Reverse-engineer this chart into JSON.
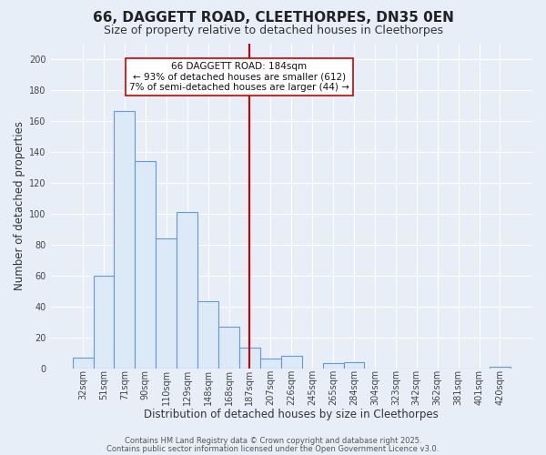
{
  "title": "66, DAGGETT ROAD, CLEETHORPES, DN35 0EN",
  "subtitle": "Size of property relative to detached houses in Cleethorpes",
  "xlabel": "Distribution of detached houses by size in Cleethorpes",
  "ylabel": "Number of detached properties",
  "bar_labels": [
    "32sqm",
    "51sqm",
    "71sqm",
    "90sqm",
    "110sqm",
    "129sqm",
    "148sqm",
    "168sqm",
    "187sqm",
    "207sqm",
    "226sqm",
    "245sqm",
    "265sqm",
    "284sqm",
    "304sqm",
    "323sqm",
    "342sqm",
    "362sqm",
    "381sqm",
    "401sqm",
    "420sqm"
  ],
  "bar_values": [
    7,
    60,
    166,
    134,
    84,
    101,
    43,
    27,
    13,
    6,
    8,
    0,
    3,
    4,
    0,
    0,
    0,
    0,
    0,
    0,
    1
  ],
  "bar_color": "#dce9f7",
  "bar_edge_color": "#6699cc",
  "vline_x_index": 8,
  "vline_color": "#cc0000",
  "annotation_title": "66 DAGGETT ROAD: 184sqm",
  "annotation_line1": "← 93% of detached houses are smaller (612)",
  "annotation_line2": "7% of semi-detached houses are larger (44) →",
  "annotation_box_color": "#ffffff",
  "annotation_box_edge": "#cc0000",
  "ylim": [
    0,
    210
  ],
  "yticks": [
    0,
    20,
    40,
    60,
    80,
    100,
    120,
    140,
    160,
    180,
    200
  ],
  "footer1": "Contains HM Land Registry data © Crown copyright and database right 2025.",
  "footer2": "Contains public sector information licensed under the Open Government Licence v3.0.",
  "plot_bg_color": "#e8eef8",
  "fig_bg_color": "#e8eef8",
  "grid_color": "#ffffff",
  "title_fontsize": 11,
  "subtitle_fontsize": 9,
  "axis_label_fontsize": 8.5,
  "tick_fontsize": 7,
  "footer_fontsize": 6,
  "annotation_fontsize": 7.5
}
